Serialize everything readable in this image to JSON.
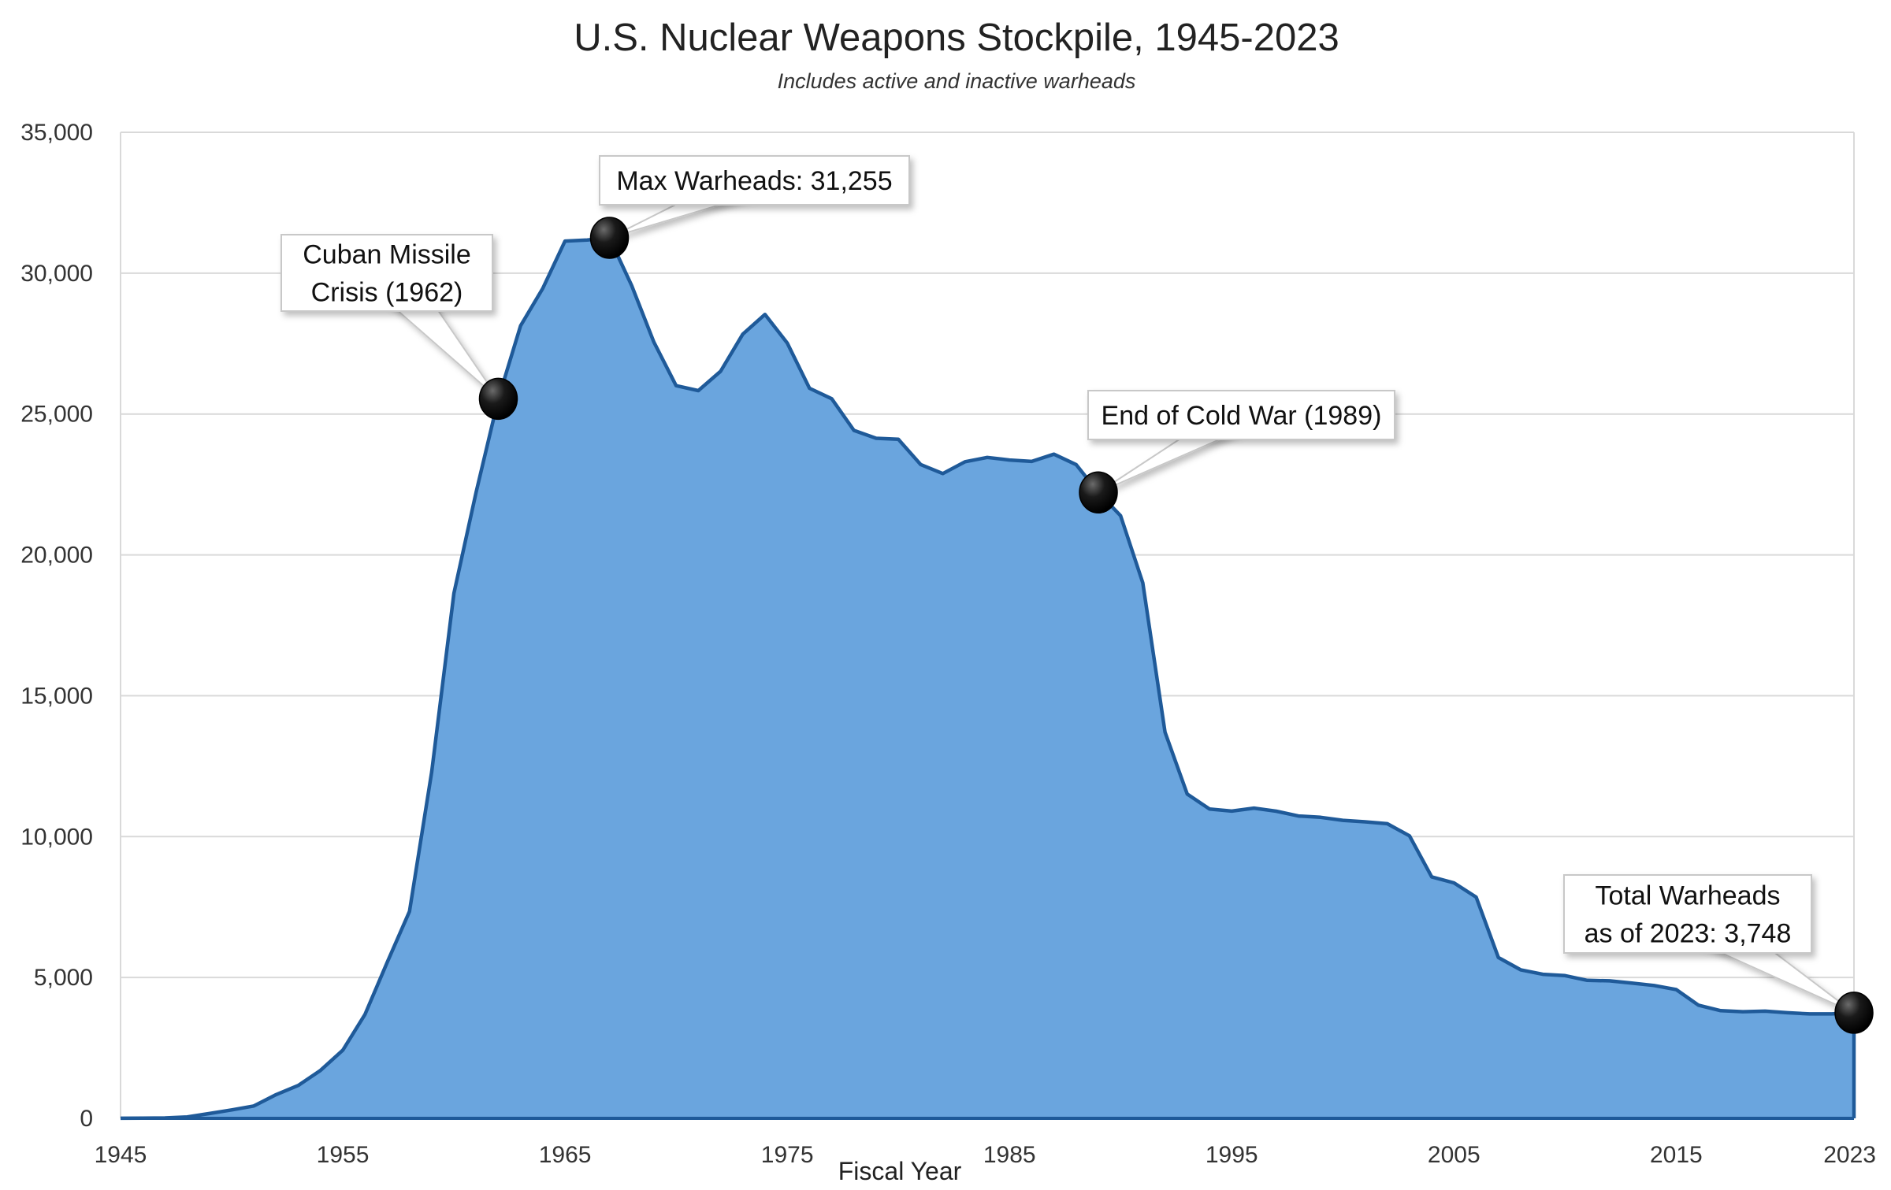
{
  "chart_data": {
    "type": "area",
    "title": "U.S. Nuclear Weapons Stockpile, 1945-2023",
    "subtitle": "Includes active and inactive warheads",
    "xlabel": "Fiscal Year",
    "ylabel": "",
    "xlim": [
      1945,
      2023
    ],
    "ylim": [
      0,
      35000
    ],
    "x_ticks": [
      1945,
      1955,
      1965,
      1975,
      1985,
      1995,
      2005,
      2015,
      2023
    ],
    "y_ticks": [
      0,
      5000,
      10000,
      15000,
      20000,
      25000,
      30000,
      35000
    ],
    "y_tick_labels": [
      "0",
      "5,000",
      "10,000",
      "15,000",
      "20,000",
      "25,000",
      "30,000",
      "35,000"
    ],
    "grid": true,
    "colors": {
      "area": "#6aa5de",
      "line": "#1f5a99",
      "grid": "#d9d9d9",
      "marker": "#111111"
    },
    "x": [
      1945,
      1946,
      1947,
      1948,
      1949,
      1950,
      1951,
      1952,
      1953,
      1954,
      1955,
      1956,
      1957,
      1958,
      1959,
      1960,
      1961,
      1962,
      1963,
      1964,
      1965,
      1966,
      1967,
      1968,
      1969,
      1970,
      1971,
      1972,
      1973,
      1974,
      1975,
      1976,
      1977,
      1978,
      1979,
      1980,
      1981,
      1982,
      1983,
      1984,
      1985,
      1986,
      1987,
      1988,
      1989,
      1990,
      1991,
      1992,
      1993,
      1994,
      1995,
      1996,
      1997,
      1998,
      1999,
      2000,
      2001,
      2002,
      2003,
      2004,
      2005,
      2006,
      2007,
      2008,
      2009,
      2010,
      2011,
      2012,
      2013,
      2014,
      2015,
      2016,
      2017,
      2018,
      2019,
      2020,
      2021,
      2022,
      2023
    ],
    "values": [
      2,
      9,
      13,
      50,
      170,
      299,
      438,
      841,
      1169,
      1703,
      2422,
      3692,
      5543,
      7345,
      12298,
      18638,
      22229,
      25540,
      28133,
      29463,
      31139,
      31175,
      31255,
      29561,
      27552,
      26008,
      25830,
      26516,
      27835,
      28537,
      27519,
      25914,
      25542,
      24418,
      24138,
      24104,
      23208,
      22886,
      23305,
      23459,
      23368,
      23317,
      23575,
      23205,
      22217,
      21392,
      19008,
      13708,
      11511,
      10979,
      10904,
      11011,
      10903,
      10732,
      10685,
      10577,
      10526,
      10457,
      10027,
      8570,
      8360,
      7853,
      5709,
      5273,
      5113,
      5066,
      4897,
      4881,
      4804,
      4717,
      4571,
      4018,
      3822,
      3785,
      3805,
      3750,
      3708,
      3708,
      3748
    ],
    "annotations": [
      {
        "name": "cuban-missile-crisis",
        "lines": [
          "Cuban Missile",
          "Crisis (1962)"
        ],
        "x": 1962,
        "y": 25540
      },
      {
        "name": "max-warheads",
        "lines": [
          "Max Warheads:  31,255"
        ],
        "x": 1967,
        "y": 31255
      },
      {
        "name": "end-of-cold-war",
        "lines": [
          "End of Cold War (1989)"
        ],
        "x": 1989,
        "y": 22217
      },
      {
        "name": "total-warheads-2023",
        "lines": [
          "Total Warheads",
          "as of 2023: 3,748"
        ],
        "x": 2023,
        "y": 3748
      }
    ]
  }
}
